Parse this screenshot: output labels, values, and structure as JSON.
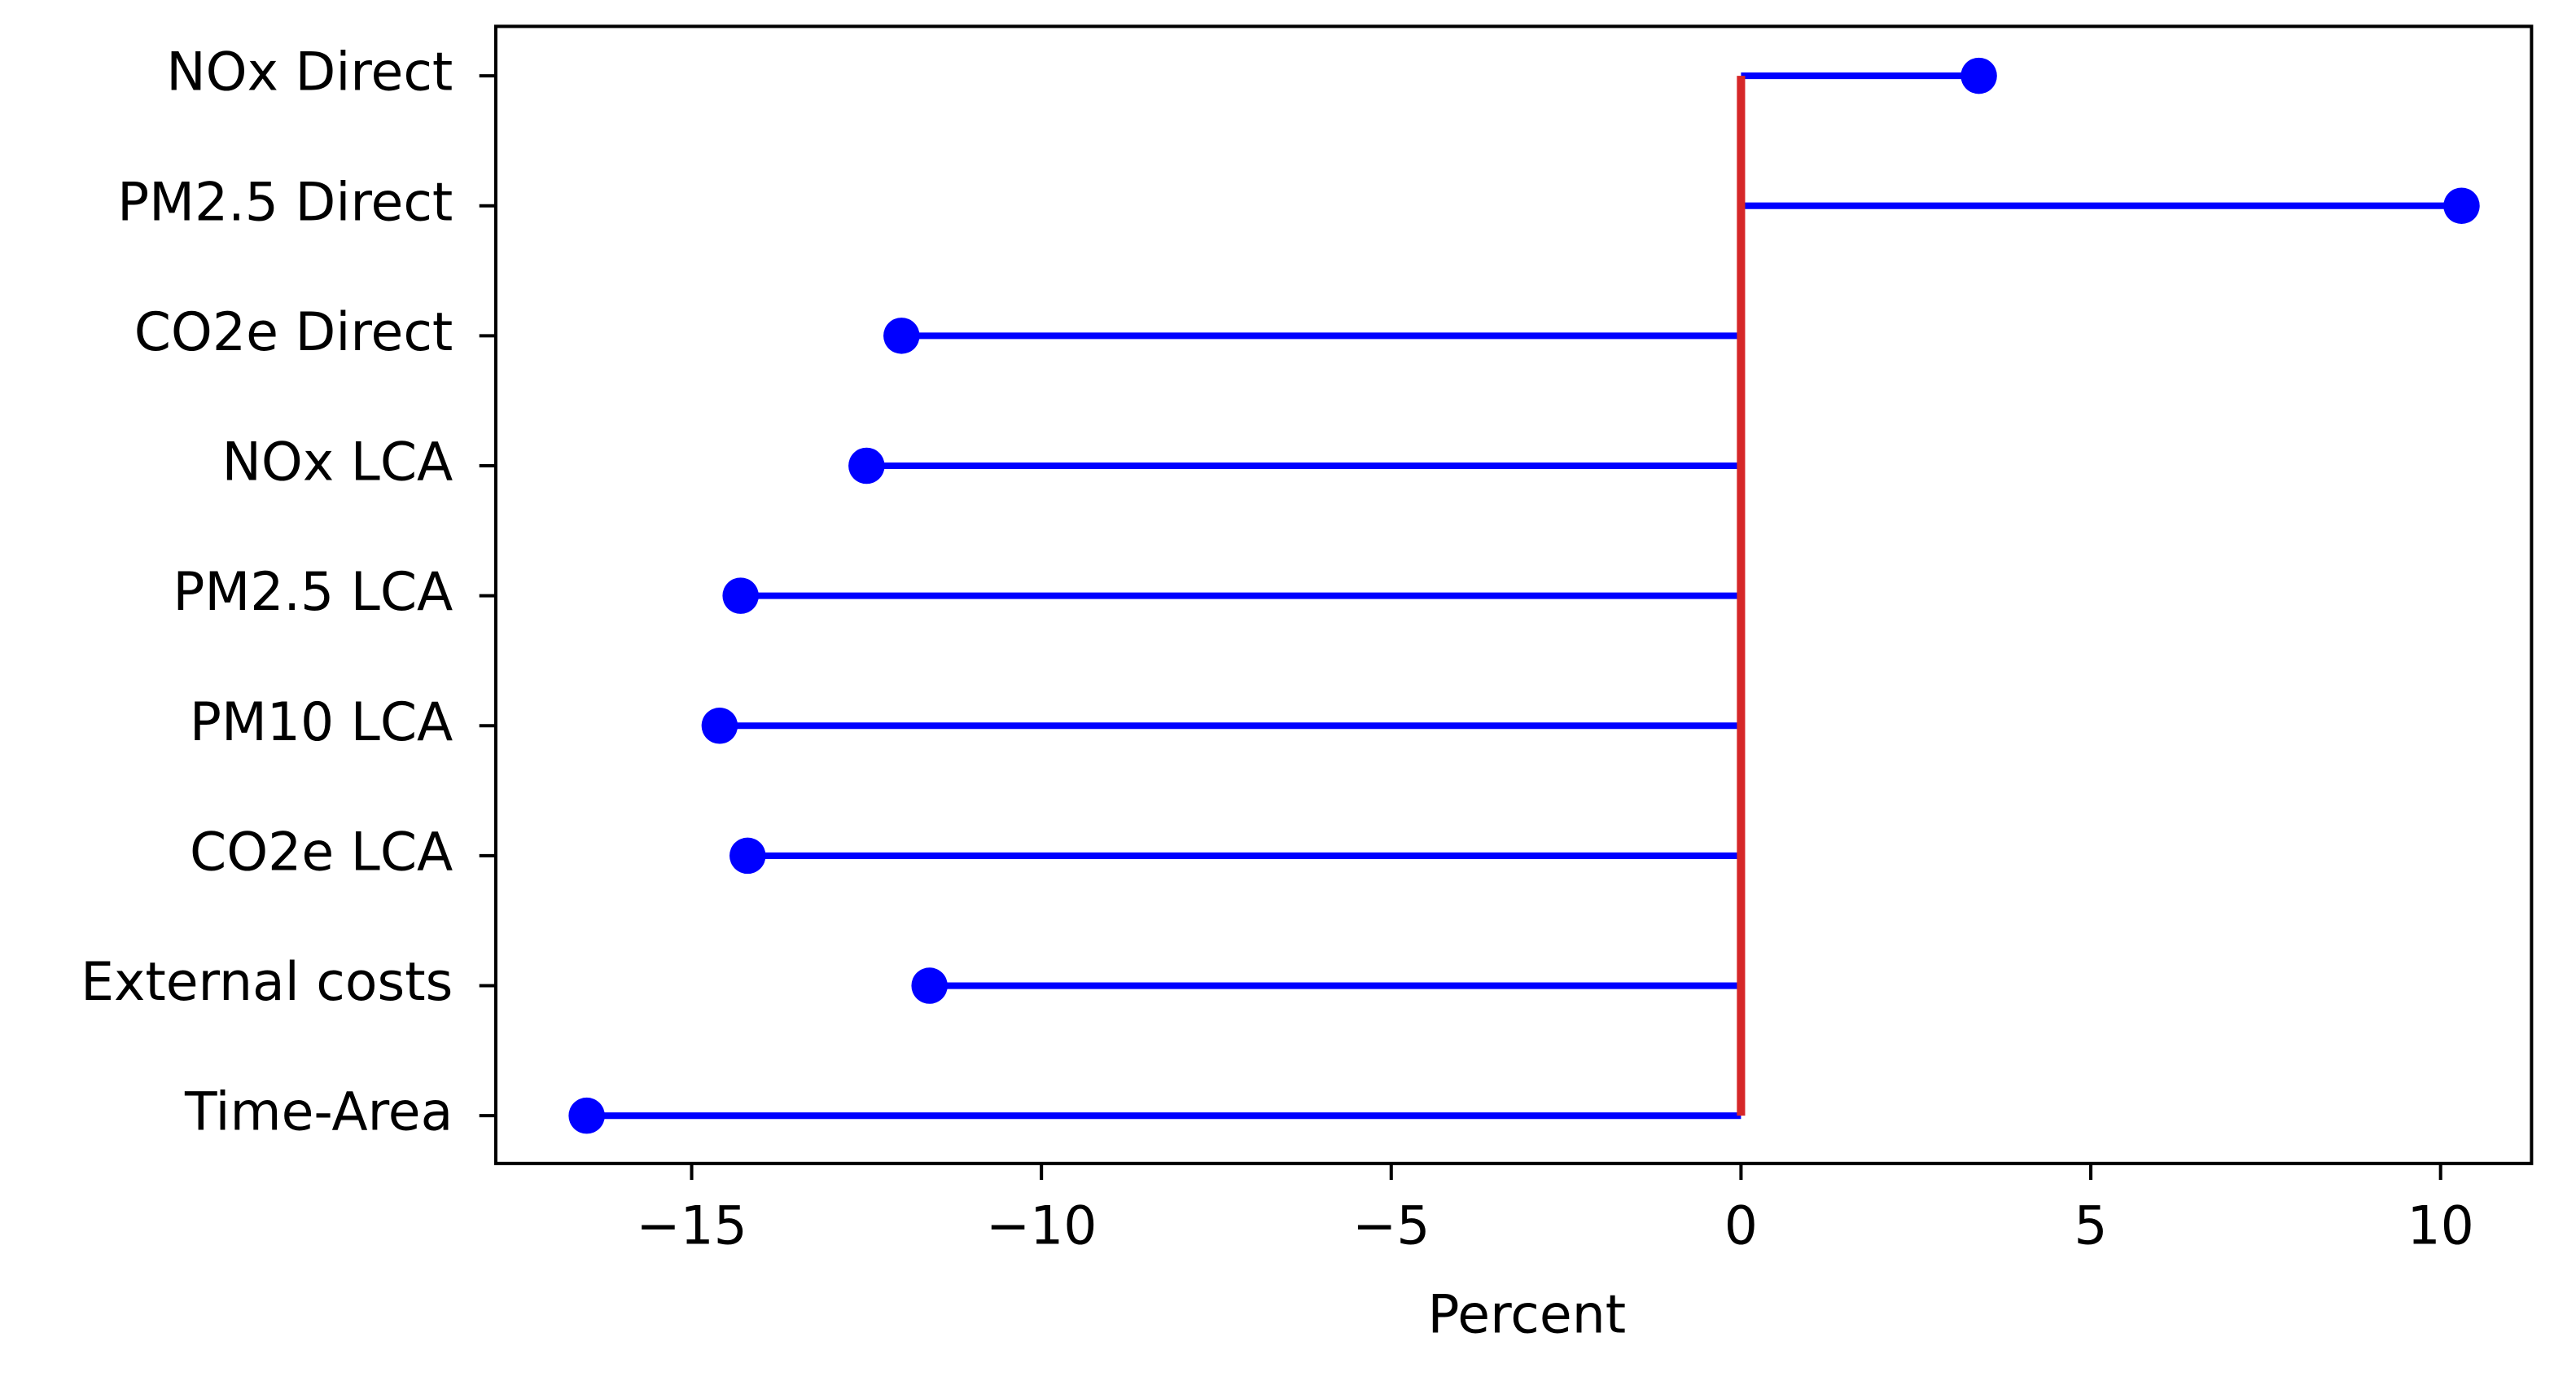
{
  "chart_data": {
    "type": "lollipop",
    "orientation": "horizontal",
    "xlabel": "Percent",
    "categories": [
      "NOx Direct",
      "PM2.5 Direct",
      "CO2e Direct",
      "NOx LCA",
      "PM2.5 LCA",
      "PM10 LCA",
      "CO2e LCA",
      "External costs",
      "Time-Area"
    ],
    "values": [
      3.4,
      10.3,
      -12.0,
      -12.5,
      -14.3,
      -14.6,
      -14.2,
      -11.6,
      -16.5
    ],
    "color": "#0000ff",
    "baseline_color": "#d62728",
    "xlim": [
      -17.8,
      11.3
    ],
    "xticks": [
      {
        "value": -15,
        "label": "−15"
      },
      {
        "value": -10,
        "label": "−10"
      },
      {
        "value": -5,
        "label": "−5"
      },
      0,
      5,
      10
    ],
    "grid": false
  }
}
